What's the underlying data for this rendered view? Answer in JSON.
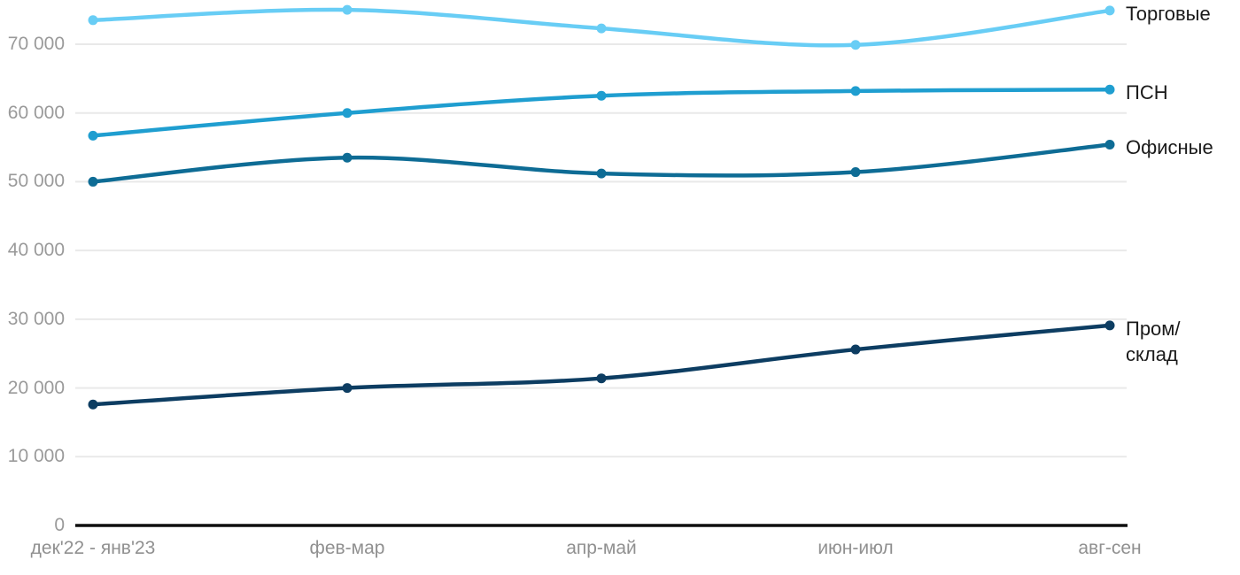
{
  "chart_data": {
    "type": "line",
    "title": "",
    "xlabel": "",
    "ylabel": "",
    "grid": "horizontal",
    "legend_position": "right-of-line-ends",
    "ylim": [
      0,
      76000
    ],
    "categories": [
      "дек'22 - янв'23",
      "фев-мар",
      "апр-май",
      "июн-июл",
      "авг-сен"
    ],
    "yticks": [
      {
        "value": 0,
        "label": "0"
      },
      {
        "value": 10000,
        "label": "10 000"
      },
      {
        "value": 20000,
        "label": "20 000"
      },
      {
        "value": 30000,
        "label": "30 000"
      },
      {
        "value": 40000,
        "label": "40 000"
      },
      {
        "value": 50000,
        "label": "50 000"
      },
      {
        "value": 60000,
        "label": "60 000"
      },
      {
        "value": 70000,
        "label": "70 000"
      }
    ],
    "series": [
      {
        "name": "Торговые",
        "color": "#68cdf5",
        "values": [
          73500,
          75000,
          72300,
          69900,
          74900
        ]
      },
      {
        "name": "ПСН",
        "color": "#1f9ed0",
        "values": [
          56700,
          60000,
          62500,
          63200,
          63400
        ]
      },
      {
        "name": "Офисные",
        "color": "#0e6c95",
        "values": [
          50000,
          53500,
          51200,
          51400,
          55400
        ]
      },
      {
        "name": "Пром/склад",
        "color": "#0d3d62",
        "values": [
          17600,
          20000,
          21400,
          25600,
          29100
        ]
      }
    ]
  },
  "colors": {
    "background": "#ffffff",
    "gridline": "#e9e9e9",
    "axis_line": "#0f0f0f",
    "y_tick_text": "#9a9a9a",
    "x_tick_text": "#909090",
    "legend_text": "#1a1a1a"
  }
}
